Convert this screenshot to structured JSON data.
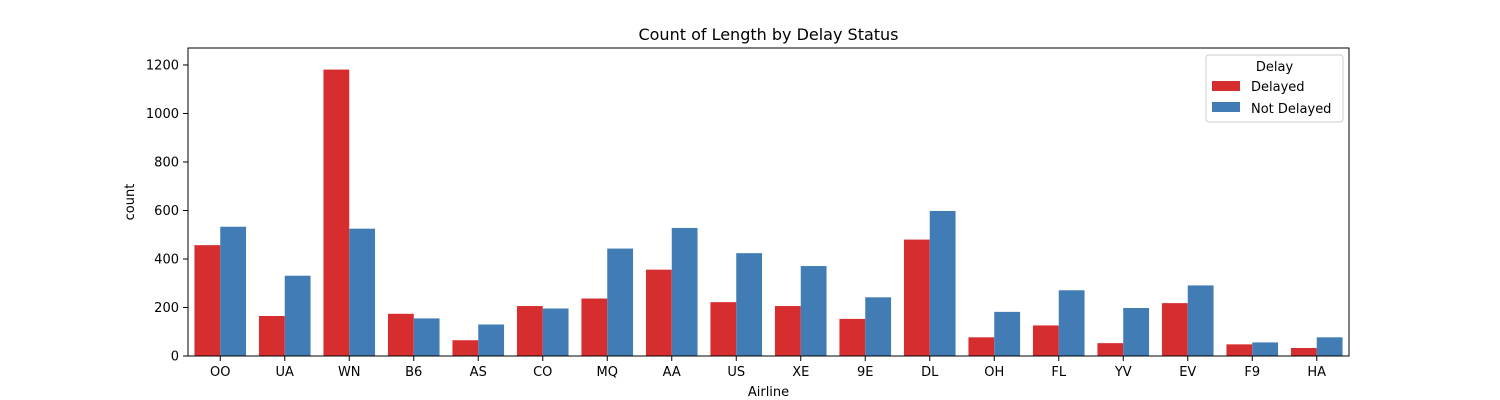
{
  "chart_data": {
    "type": "bar",
    "title": "Count of Length by Delay Status",
    "xlabel": "Airline",
    "ylabel": "count",
    "ylim": [
      0,
      1270
    ],
    "yticks": [
      0,
      200,
      400,
      600,
      800,
      1000,
      1200
    ],
    "categories": [
      "OO",
      "UA",
      "WN",
      "B6",
      "AS",
      "CO",
      "MQ",
      "AA",
      "US",
      "XE",
      "9E",
      "DL",
      "OH",
      "FL",
      "YV",
      "EV",
      "F9",
      "HA"
    ],
    "legend_title": "Delay",
    "legend_position": "top-right",
    "grid": false,
    "series": [
      {
        "name": "Delayed",
        "color": "#d62d2f",
        "values": [
          457,
          165,
          1181,
          174,
          65,
          206,
          237,
          356,
          222,
          206,
          153,
          480,
          77,
          126,
          53,
          218,
          48,
          33
        ]
      },
      {
        "name": "Not Delayed",
        "color": "#417db4",
        "values": [
          533,
          331,
          525,
          155,
          130,
          196,
          443,
          528,
          424,
          371,
          242,
          598,
          182,
          271,
          198,
          291,
          56,
          77
        ]
      }
    ]
  }
}
